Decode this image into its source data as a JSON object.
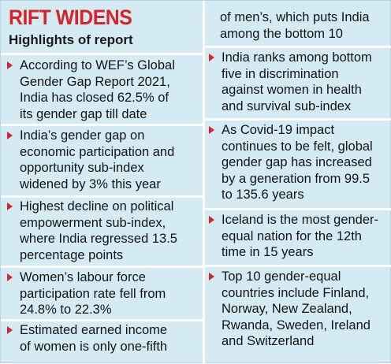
{
  "header": {
    "title": "RIFT WIDENS",
    "subtitle": "Highlights of report"
  },
  "left_items": [
    "According to WEF’s Global\nGender Gap Report 2021,\nIndia has closed 62.5% of\nits gender gap till date",
    "India’s gender gap on\neconomic participation and\nopportunity sub-index\nwidened by 3% this year",
    "Highest decline on political\nempowerment sub-index,\nwhere India regressed 13.5\npercentage points",
    "Women’s labour force\nparticipation rate fell from\n24.8% to 22.3%",
    "Estimated earned income\nof women is only one-fifth"
  ],
  "right_continuation": "of men’s, which puts India\namong the bottom 10",
  "right_items": [
    "India ranks among bottom\nfive in discrimination\nagainst women in health\nand survival sub-index",
    "As Covid-19 impact\ncontinues to be felt, global\ngender gap has increased\nby a generation from 99.5\nto 135.6 years",
    "Iceland is the most gender-\nequal nation for the 12th\ntime in 15 years",
    "Top 10 gender-equal\ncountries include Finland,\nNorway, New Zealand,\nRwanda, Sweden, Ireland\nand Switzerland"
  ],
  "colors": {
    "background": "#d4ebf4",
    "accent": "#d8232a",
    "text": "#141414"
  }
}
